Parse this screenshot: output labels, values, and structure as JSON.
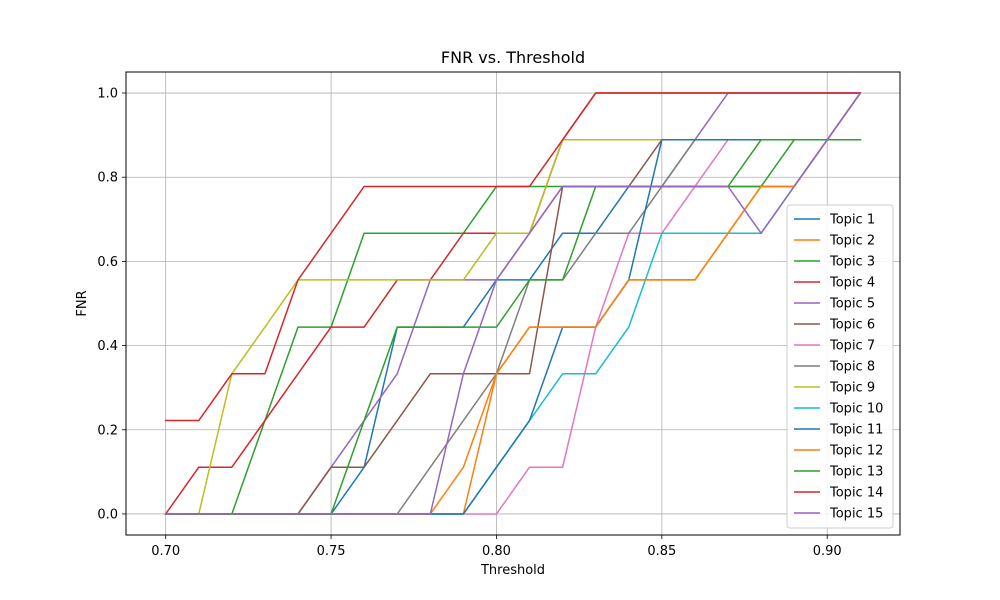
{
  "chart_data": {
    "type": "line",
    "title": "FNR vs. Threshold",
    "xlabel": "Threshold",
    "ylabel": "FNR",
    "xlim": [
      0.688,
      0.922
    ],
    "ylim": [
      -0.05,
      1.05
    ],
    "xticks": [
      0.7,
      0.75,
      0.8,
      0.85,
      0.9
    ],
    "xtick_labels": [
      "0.70",
      "0.75",
      "0.80",
      "0.85",
      "0.90"
    ],
    "yticks": [
      0.0,
      0.2,
      0.4,
      0.6,
      0.8,
      1.0
    ],
    "ytick_labels": [
      "0.0",
      "0.2",
      "0.4",
      "0.6",
      "0.8",
      "1.0"
    ],
    "grid": true,
    "legend_position": "lower-right",
    "x": [
      0.7,
      0.71,
      0.72,
      0.73,
      0.74,
      0.75,
      0.76,
      0.77,
      0.78,
      0.79,
      0.8,
      0.81,
      0.82,
      0.83,
      0.84,
      0.85,
      0.86,
      0.87,
      0.88,
      0.89,
      0.9,
      0.91
    ],
    "series": [
      {
        "name": "Topic 1",
        "color": "#1f77b4",
        "values": [
          0,
          0,
          0,
          0,
          0,
          0,
          0.111,
          0.444,
          0.444,
          0.444,
          0.556,
          0.556,
          0.667,
          0.667,
          0.778,
          0.778,
          0.778,
          0.778,
          0.778,
          0.778,
          0.889,
          1.0
        ]
      },
      {
        "name": "Topic 2",
        "color": "#ff7f0e",
        "values": [
          0,
          0,
          0,
          0,
          0,
          0,
          0,
          0,
          0,
          0,
          0.333,
          0.444,
          0.444,
          0.444,
          0.556,
          0.556,
          0.556,
          0.667,
          0.778,
          0.778,
          0.889,
          1.0
        ]
      },
      {
        "name": "Topic 3",
        "color": "#2ca02c",
        "values": [
          0,
          0,
          0,
          0.222,
          0.444,
          0.444,
          0.667,
          0.667,
          0.667,
          0.667,
          0.778,
          0.778,
          0.778,
          0.778,
          0.778,
          0.778,
          0.778,
          0.778,
          0.778,
          0.889,
          0.889,
          0.889
        ]
      },
      {
        "name": "Topic 4",
        "color": "#d62728",
        "values": [
          0,
          0.111,
          0.111,
          0.222,
          0.333,
          0.444,
          0.444,
          0.556,
          0.556,
          0.667,
          0.667,
          0.667,
          0.889,
          1.0,
          1.0,
          1.0,
          1.0,
          1.0,
          1.0,
          1.0,
          1.0,
          1.0
        ]
      },
      {
        "name": "Topic 5",
        "color": "#9467bd",
        "values": [
          0,
          0,
          0,
          0,
          0,
          0.111,
          0.222,
          0.333,
          0.556,
          0.556,
          0.556,
          0.667,
          0.778,
          0.778,
          0.778,
          0.778,
          0.889,
          1.0,
          1.0,
          1.0,
          1.0,
          1.0
        ]
      },
      {
        "name": "Topic 6",
        "color": "#8c564b",
        "values": [
          0,
          0,
          0,
          0,
          0,
          0.111,
          0.111,
          0.222,
          0.333,
          0.333,
          0.333,
          0.333,
          0.778,
          0.778,
          0.778,
          0.889,
          0.889,
          0.889,
          0.889,
          0.889,
          0.889,
          0.889
        ]
      },
      {
        "name": "Topic 7",
        "color": "#e377c2",
        "values": [
          0,
          0,
          0,
          0,
          0,
          0,
          0,
          0,
          0,
          0,
          0,
          0.111,
          0.111,
          0.444,
          0.667,
          0.667,
          0.778,
          0.889,
          0.889,
          0.889,
          0.889,
          0.889
        ]
      },
      {
        "name": "Topic 8",
        "color": "#7f7f7f",
        "values": [
          0,
          0,
          0,
          0,
          0,
          0,
          0,
          0,
          0.111,
          0.222,
          0.333,
          0.556,
          0.556,
          0.667,
          0.667,
          0.778,
          0.889,
          0.889,
          0.889,
          0.889,
          0.889,
          0.889
        ]
      },
      {
        "name": "Topic 9",
        "color": "#bcbd22",
        "values": [
          0,
          0,
          0.333,
          0.444,
          0.556,
          0.556,
          0.556,
          0.556,
          0.556,
          0.556,
          0.667,
          0.667,
          0.889,
          0.889,
          0.889,
          0.889,
          0.889,
          0.889,
          0.889,
          0.889,
          0.889,
          0.889
        ]
      },
      {
        "name": "Topic 10",
        "color": "#17becf",
        "values": [
          0,
          0,
          0,
          0,
          0,
          0,
          0,
          0,
          0,
          0,
          0.111,
          0.222,
          0.333,
          0.333,
          0.444,
          0.667,
          0.667,
          0.667,
          0.667,
          0.778,
          0.889,
          1.0
        ]
      },
      {
        "name": "Topic 11",
        "color": "#1f77b4",
        "values": [
          0,
          0,
          0,
          0,
          0,
          0,
          0,
          0,
          0,
          0,
          0.111,
          0.222,
          0.444,
          0.444,
          0.556,
          0.889,
          0.889,
          0.889,
          0.889,
          0.889,
          0.889,
          0.889
        ]
      },
      {
        "name": "Topic 12",
        "color": "#ff7f0e",
        "values": [
          0,
          0,
          0,
          0,
          0,
          0,
          0,
          0,
          0,
          0.111,
          0.333,
          0.444,
          0.444,
          0.444,
          0.556,
          0.556,
          0.556,
          0.667,
          0.778,
          0.778,
          0.889,
          1.0
        ]
      },
      {
        "name": "Topic 13",
        "color": "#2ca02c",
        "values": [
          0,
          0,
          0,
          0,
          0,
          0,
          0.222,
          0.444,
          0.444,
          0.444,
          0.444,
          0.556,
          0.556,
          0.778,
          0.778,
          0.778,
          0.778,
          0.778,
          0.889,
          0.889,
          0.889,
          0.889
        ]
      },
      {
        "name": "Topic 14",
        "color": "#d62728",
        "values": [
          0.222,
          0.222,
          0.333,
          0.333,
          0.556,
          0.667,
          0.778,
          0.778,
          0.778,
          0.778,
          0.778,
          0.778,
          0.889,
          1.0,
          1.0,
          1.0,
          1.0,
          1.0,
          1.0,
          1.0,
          1.0,
          1.0
        ]
      },
      {
        "name": "Topic 15",
        "color": "#9467bd",
        "values": [
          0,
          0,
          0,
          0,
          0,
          0,
          0,
          0,
          0,
          0.333,
          0.556,
          0.667,
          0.778,
          0.778,
          0.778,
          0.778,
          0.778,
          0.778,
          0.667,
          0.778,
          0.889,
          1.0
        ]
      }
    ]
  }
}
